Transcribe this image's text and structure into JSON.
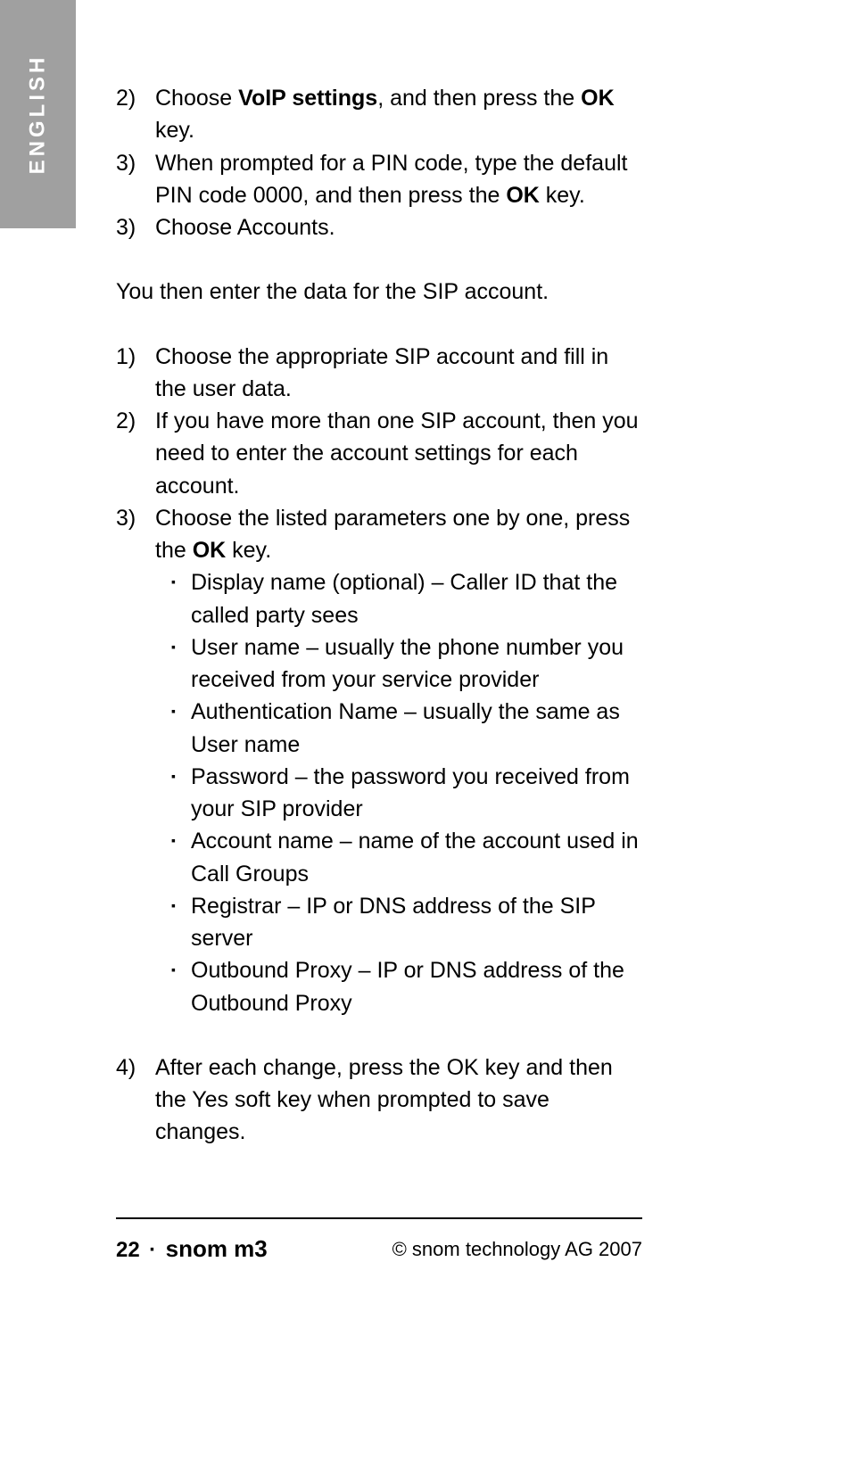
{
  "language_tab": "ENGLISH",
  "steps_a": [
    {
      "num": "2)",
      "parts": [
        "Choose ",
        {
          "bold": true,
          "t": "VoIP settings"
        },
        ", and then press the ",
        {
          "bold": true,
          "t": "OK"
        },
        " key."
      ]
    },
    {
      "num": "3)",
      "parts": [
        "When prompted for a PIN code, type the default PIN code 0000, and then press the ",
        {
          "bold": true,
          "t": "OK"
        },
        " key."
      ]
    },
    {
      "num": "3)",
      "parts": [
        "Choose Accounts."
      ]
    }
  ],
  "intro_text": "You then enter the data for the SIP account.",
  "steps_b": [
    {
      "num": "1)",
      "parts": [
        "Choose the appropriate SIP account and fill in the user data."
      ]
    },
    {
      "num": "2)",
      "parts": [
        "If you have more than one SIP account, then you need to enter the account settings for each account."
      ]
    },
    {
      "num": "3)",
      "parts": [
        "Choose the listed parameters one by one, press the ",
        {
          "bold": true,
          "t": "OK"
        },
        " key."
      ]
    }
  ],
  "bullets": [
    "Display name (optional) – Caller ID that the called party sees",
    "User name – usually the phone number you received from your service provider",
    "Authentication Name – usually the same as User name",
    "Password – the password you received from your SIP provider",
    "Account name – name of the account used in Call Groups",
    "Registrar – IP or DNS address of the SIP server",
    "Outbound Proxy – IP or DNS address of the Outbound Proxy"
  ],
  "steps_c": [
    {
      "num": "4)",
      "parts": [
        "After each change, press the OK key and then the Yes soft key when prompted to save changes."
      ]
    }
  ],
  "footer": {
    "page": "22",
    "dot": "·",
    "model": "snom m3",
    "copyright": "© snom technology AG 2007"
  }
}
